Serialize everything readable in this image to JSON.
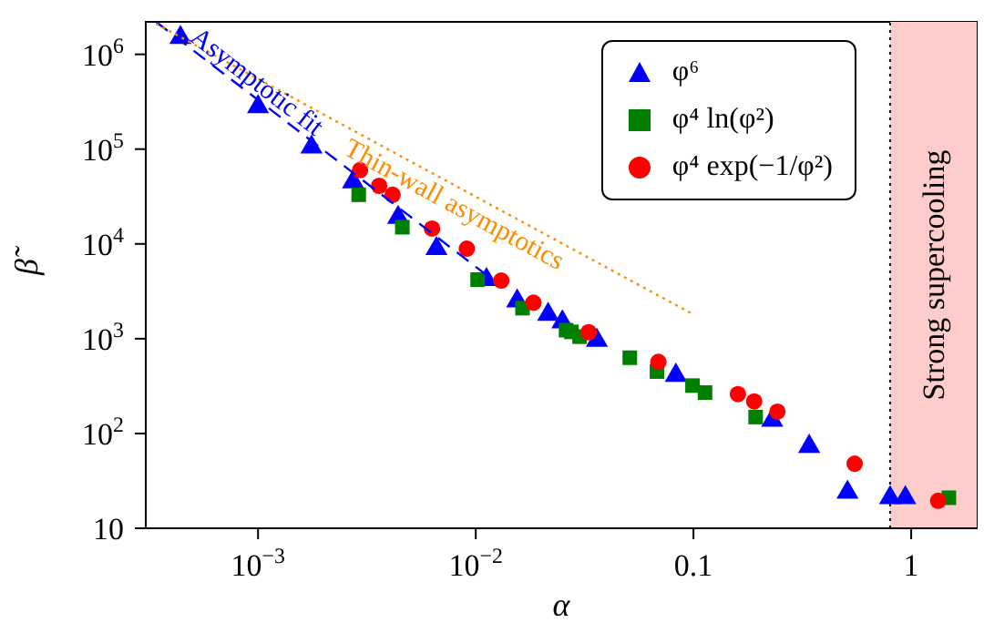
{
  "chart_data": {
    "type": "scatter",
    "xlabel": "α",
    "ylabel": "β̃",
    "log": "xy",
    "xlim": [
      0.000305,
      2
    ],
    "ylim": [
      10,
      2200000
    ],
    "xticks": [
      {
        "value": 0.001,
        "label": "10$^{−3}$"
      },
      {
        "value": 0.01,
        "label": "10$^{−2}$"
      },
      0.1,
      1
    ],
    "yticks": [
      10,
      {
        "value": 100,
        "label": "10$^{2}$"
      },
      {
        "value": 1000,
        "label": "10$^{3}$"
      },
      {
        "value": 10000,
        "label": "10$^{4}$"
      },
      {
        "value": 100000,
        "label": "10$^{5}$"
      },
      {
        "value": 1000000,
        "label": "10$^{6}$"
      }
    ],
    "grid": false,
    "legend": "top right",
    "series": [
      {
        "name": "φ⁶",
        "marker": "triangle",
        "color": "#0000ff",
        "x": [
          0.00044,
          0.001,
          0.00176,
          0.00273,
          0.0044,
          0.0066,
          0.0112,
          0.0155,
          0.0215,
          0.025,
          0.036,
          0.083,
          0.23,
          0.34,
          0.51,
          0.8,
          0.94
        ],
        "values": [
          1500000,
          280000,
          105000,
          45000,
          19000,
          8900,
          4200,
          2500,
          1800,
          1500,
          960,
          410,
          138,
          73,
          24,
          21,
          21
        ]
      },
      {
        "name": "φ⁴ ln(φ²)",
        "marker": "square",
        "color": "#008000",
        "x": [
          0.0029,
          0.0046,
          0.0102,
          0.0164,
          0.026,
          0.0275,
          0.03,
          0.051,
          0.068,
          0.099,
          0.113,
          0.193,
          1.49
        ],
        "values": [
          33000,
          15000,
          4200,
          2100,
          1230,
          1180,
          1050,
          630,
          450,
          320,
          270,
          149,
          21
        ]
      },
      {
        "name": "φ⁴ exp(−1/φ²)",
        "marker": "circle",
        "color": "#ff0000",
        "x": [
          0.00294,
          0.0036,
          0.00415,
          0.0063,
          0.0091,
          0.0131,
          0.0184,
          0.033,
          0.069,
          0.16,
          0.19,
          0.243,
          0.55,
          1.33
        ],
        "values": [
          60000,
          41000,
          33000,
          14500,
          8900,
          4100,
          2400,
          1170,
          570,
          260,
          218,
          170,
          48,
          19.5
        ]
      },
      {
        "name": "Asymptotic fit",
        "type": "line",
        "marker": "none",
        "line_style": "dashed",
        "color": "#0000ff",
        "x": [
          0.00034,
          0.0112
        ],
        "values": [
          2200000,
          4700
        ]
      },
      {
        "name": "Thin-wall asymptotics",
        "type": "line",
        "marker": "none",
        "line_style": "dotted",
        "color": "#ff8c00",
        "x": [
          0.00034,
          0.1
        ],
        "values": [
          2100000,
          1800
        ]
      }
    ],
    "bands": [
      {
        "axis": "x",
        "from": 0.8,
        "to": 2,
        "label": "Strong supercooling",
        "color": "#ffcccc"
      }
    ],
    "ref_lines": [
      {
        "axis": "x",
        "value": 0.8,
        "color": "#000000",
        "line_style": "dotted"
      }
    ]
  }
}
